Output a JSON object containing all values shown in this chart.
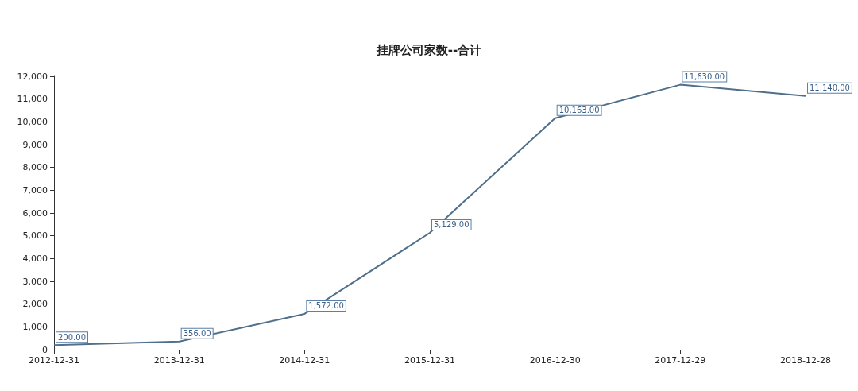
{
  "chart_data": {
    "type": "line",
    "title": "挂牌公司家数--合计",
    "categories": [
      "2012-12-31",
      "2013-12-31",
      "2014-12-31",
      "2015-12-31",
      "2016-12-30",
      "2017-12-29",
      "2018-12-28"
    ],
    "values": [
      200,
      356,
      1572,
      5129,
      10163,
      11630,
      11140
    ],
    "value_labels": [
      "200.00",
      "356.00",
      "1,572.00",
      "5,129.00",
      "10,163.00",
      "11,630.00",
      "11,140.00"
    ],
    "color": "#4f6f8a",
    "marker": "none",
    "grid": false,
    "ylim": [
      0,
      12000
    ],
    "yticks": [
      0,
      {
        "value": 1000,
        "label": "1,000"
      },
      {
        "value": 2000,
        "label": "2,000"
      },
      {
        "value": 3000,
        "label": "3,000"
      },
      {
        "value": 4000,
        "label": "4,000"
      },
      {
        "value": 5000,
        "label": "5,000"
      },
      {
        "value": 6000,
        "label": "6,000"
      },
      {
        "value": 7000,
        "label": "7,000"
      },
      {
        "value": 8000,
        "label": "8,000"
      },
      {
        "value": 9000,
        "label": "9,000"
      },
      {
        "value": 10000,
        "label": "10,000"
      },
      {
        "value": 11000,
        "label": "11,000"
      },
      {
        "value": 12000,
        "label": "12,000"
      }
    ]
  }
}
